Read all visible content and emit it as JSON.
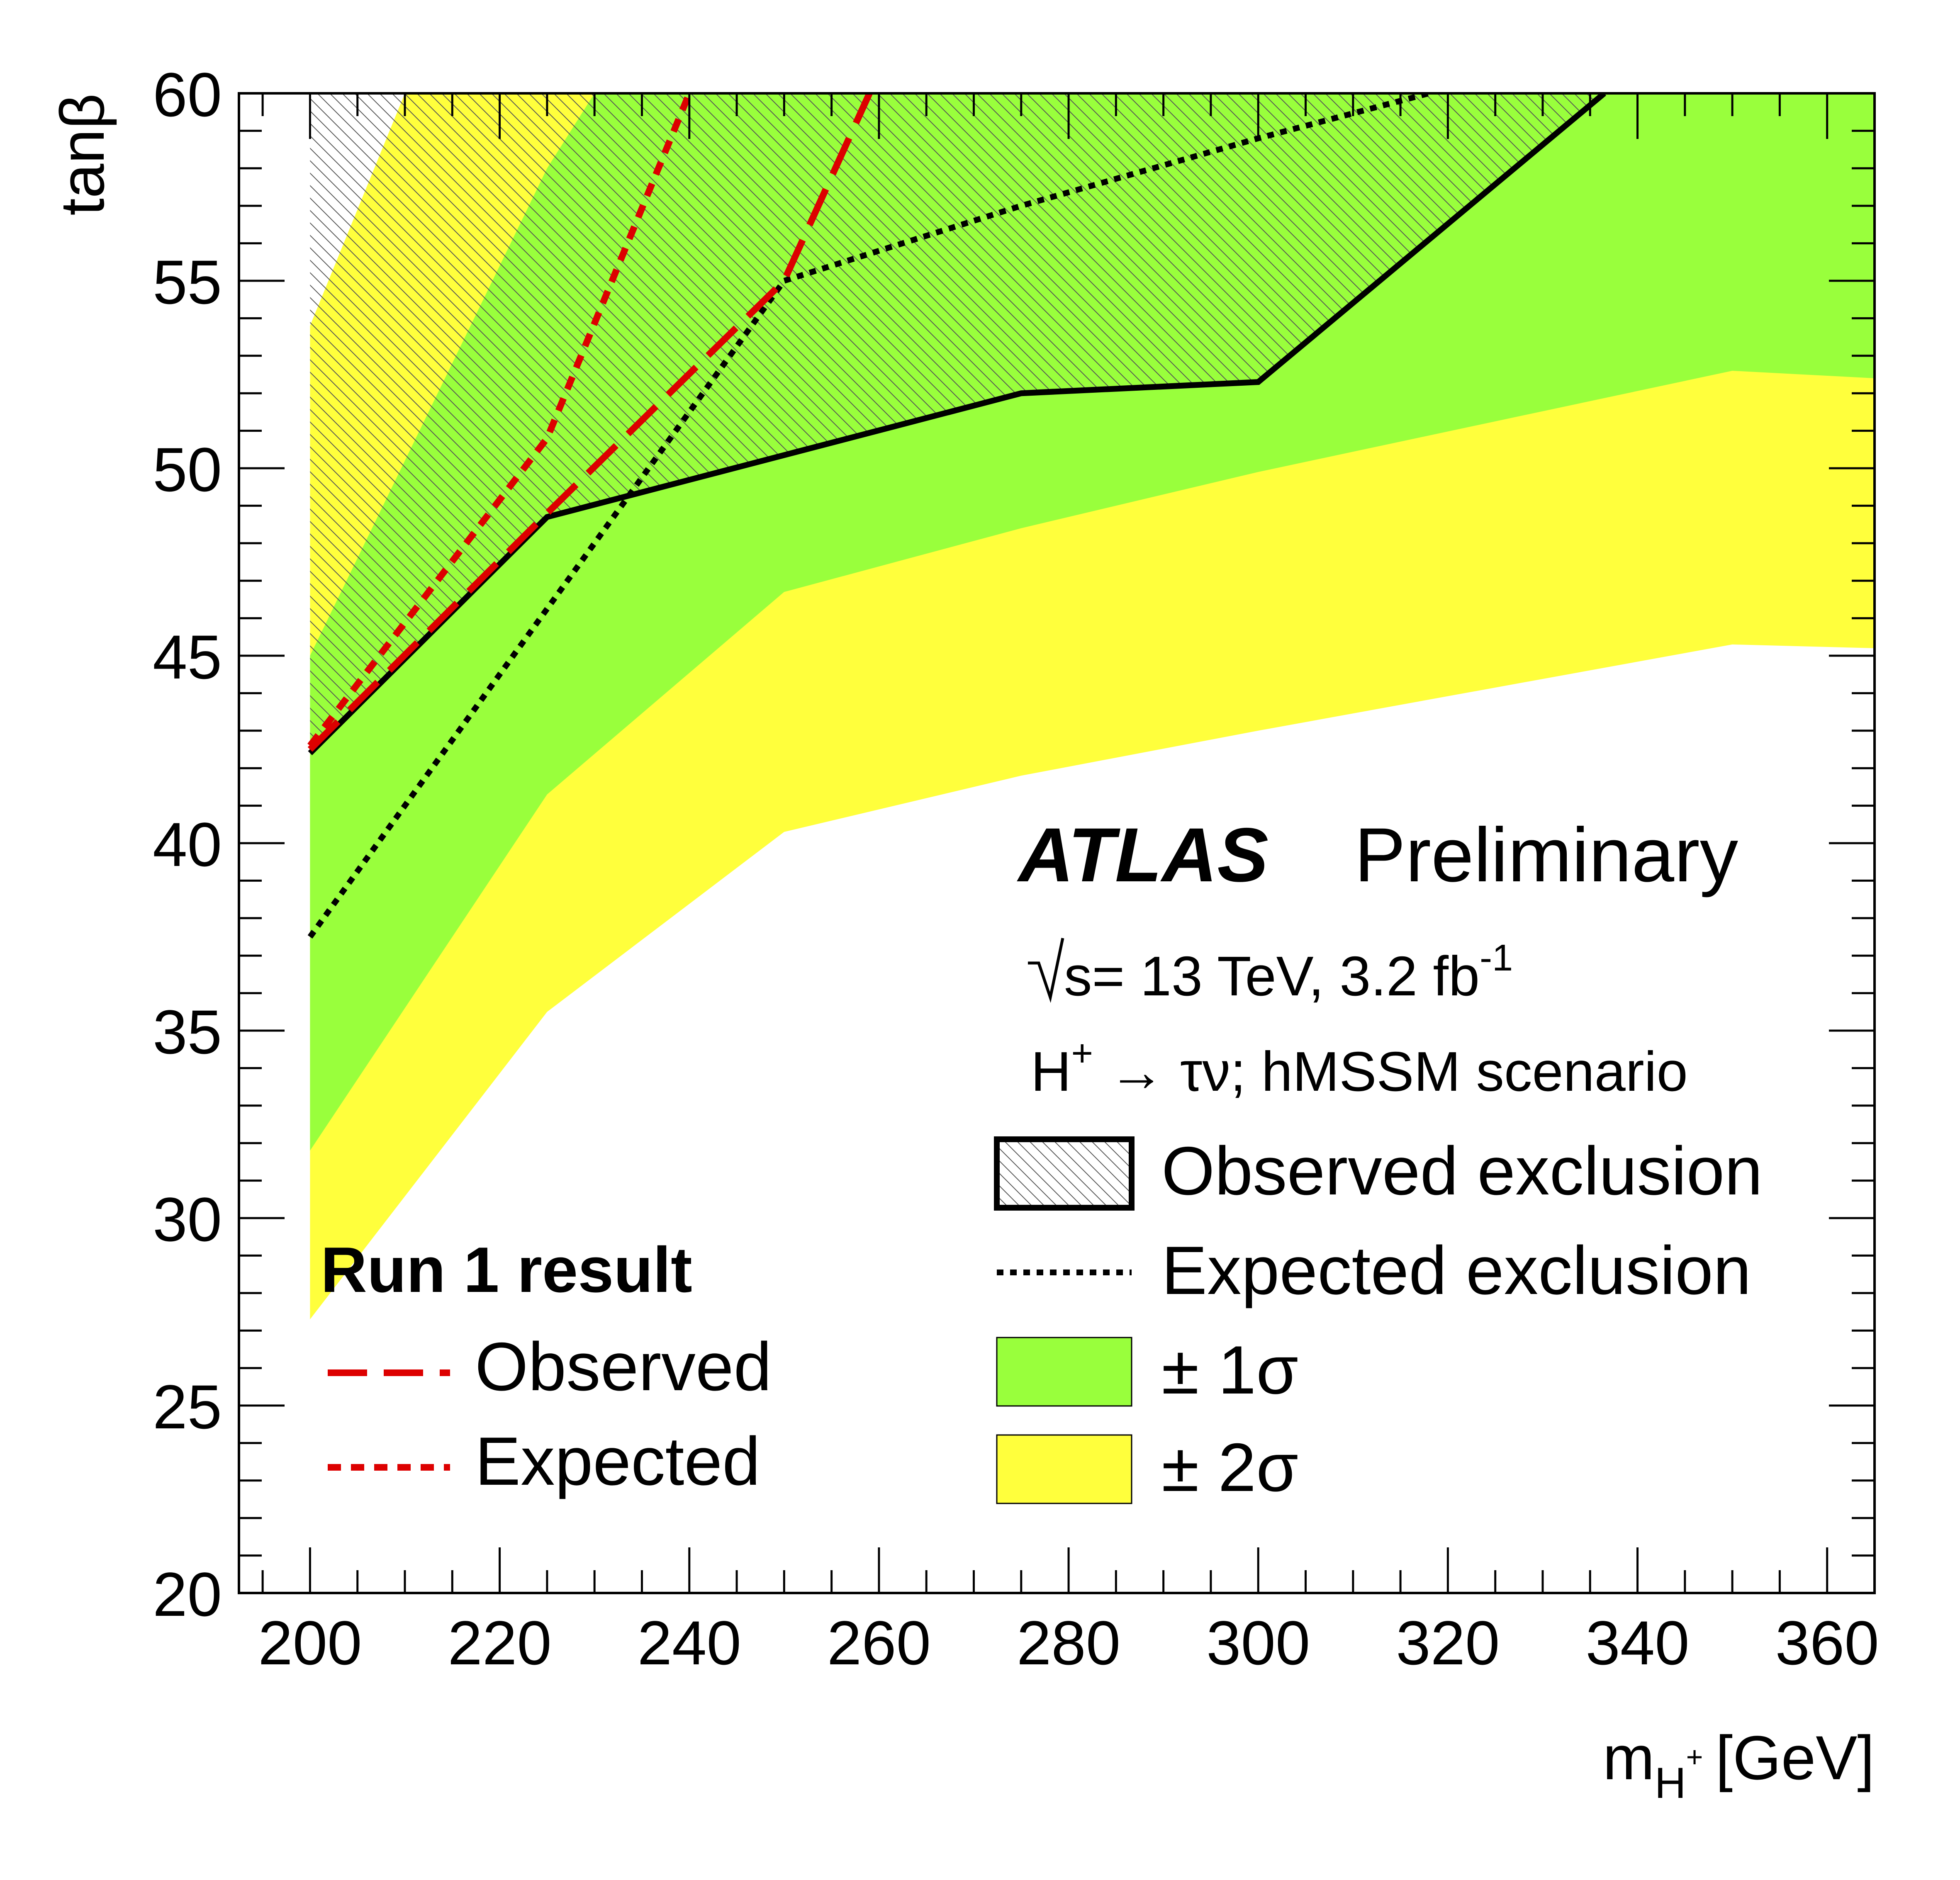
{
  "chart_data": {
    "type": "area",
    "xlabel": "m",
    "xlabel_sub": "H",
    "xlabel_sup": "+",
    "xlabel_unit": "[GeV]",
    "ylabel": "tanβ",
    "xlim": [
      192.5,
      365
    ],
    "ylim": [
      20,
      60
    ],
    "x_ticks": [
      200,
      220,
      240,
      260,
      280,
      300,
      320,
      340,
      360
    ],
    "y_ticks": [
      20,
      25,
      30,
      35,
      40,
      45,
      50,
      55,
      60
    ],
    "grid": false,
    "experiment": "ATLAS",
    "status": "Preliminary",
    "energy_prefix": "s= 13 TeV, 3.2 fb",
    "energy_sup": "-1",
    "process_prefix": "H",
    "process_sup": "+",
    "process_suffix": " → τν; hMSSM scenario",
    "legend": {
      "position": "bottom-right",
      "observed": "Observed exclusion",
      "expected": "Expected exclusion",
      "one_sigma": "± 1σ",
      "two_sigma": "± 2σ"
    },
    "run1_legend": {
      "position": "bottom-left",
      "title": "Run 1 result",
      "observed": "Observed",
      "expected": "Expected"
    },
    "series": [
      {
        "name": "Observed exclusion",
        "x": [
          200,
          225,
          275,
          300,
          336.5
        ],
        "y": [
          42.4,
          48.7,
          52.0,
          52.3,
          60.0
        ]
      },
      {
        "name": "Expected exclusion",
        "x": [
          200,
          250,
          275,
          300,
          318
        ],
        "y": [
          37.5,
          55.0,
          57.0,
          58.8,
          60.0
        ]
      },
      {
        "name": "Observed",
        "x": [
          200,
          225,
          250,
          259
        ],
        "y": [
          42.5,
          48.8,
          55.0,
          60.0
        ]
      },
      {
        "name": "Expected",
        "x": [
          200,
          225,
          240
        ],
        "y": [
          42.6,
          50.8,
          60.0
        ]
      }
    ],
    "bands": [
      {
        "name": "± 2σ",
        "color": "#ffff3c",
        "x": [
          200,
          225,
          250,
          275,
          300,
          350,
          365
        ],
        "lower": [
          27.3,
          35.5,
          40.3,
          41.8,
          43.0,
          45.3,
          45.2
        ],
        "upper": [
          53.8,
          60.0,
          60.0,
          60.0,
          60.0,
          60.0,
          60.0
        ],
        "upper_ends_at": {
          "x": 210,
          "y": 60
        }
      },
      {
        "name": "± 1σ",
        "color": "#99ff3c",
        "x": [
          200,
          225,
          250,
          275,
          300,
          350,
          365
        ],
        "lower": [
          31.8,
          41.3,
          46.7,
          48.4,
          49.9,
          52.6,
          52.4
        ],
        "upper": [
          45.0,
          58.0,
          60.0,
          60.0,
          60.0,
          60.0,
          60.0
        ],
        "upper_ends_at": {
          "x": 230,
          "y": 60
        }
      }
    ],
    "colors": {
      "observed_line": "#000000",
      "run1_line": "#dd0000",
      "one_sigma": "#99ff3c",
      "two_sigma": "#ffff3c",
      "hatch": "#555555"
    }
  }
}
